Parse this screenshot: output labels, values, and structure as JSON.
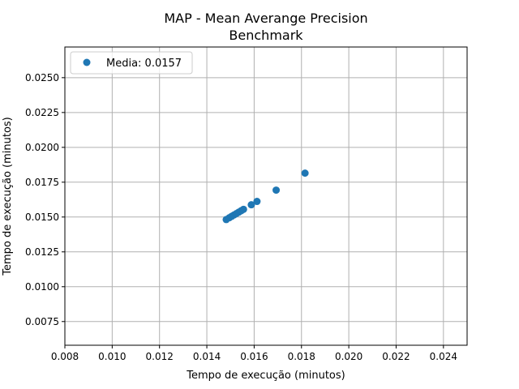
{
  "chart_data": {
    "type": "scatter",
    "title": "MAP - Mean Averange Precision",
    "subtitle": "Benchmark",
    "xlabel": "Tempo de execução (minutos)",
    "ylabel": "Tempo de execução (minutos)",
    "xlim": [
      0.008,
      0.025
    ],
    "ylim": [
      0.0058,
      0.0272
    ],
    "grid": true,
    "legend_position": "top-left",
    "x_ticks": [
      "0.008",
      "0.010",
      "0.012",
      "0.014",
      "0.016",
      "0.018",
      "0.020",
      "0.022",
      "0.024"
    ],
    "y_ticks": [
      "0.0075",
      "0.0100",
      "0.0125",
      "0.0150",
      "0.0175",
      "0.0200",
      "0.0225",
      "0.0250"
    ],
    "marker_color": "#1f77b4",
    "series": [
      {
        "name": "Media: 0.0157",
        "points": [
          {
            "x": 0.01482,
            "y": 0.01482
          },
          {
            "x": 0.01495,
            "y": 0.01495
          },
          {
            "x": 0.01505,
            "y": 0.01505
          },
          {
            "x": 0.01515,
            "y": 0.01515
          },
          {
            "x": 0.01525,
            "y": 0.01525
          },
          {
            "x": 0.01535,
            "y": 0.01535
          },
          {
            "x": 0.01545,
            "y": 0.01545
          },
          {
            "x": 0.01555,
            "y": 0.01555
          },
          {
            "x": 0.01588,
            "y": 0.01588
          },
          {
            "x": 0.01612,
            "y": 0.01612
          },
          {
            "x": 0.01693,
            "y": 0.01693
          },
          {
            "x": 0.01815,
            "y": 0.01815
          }
        ]
      }
    ]
  }
}
